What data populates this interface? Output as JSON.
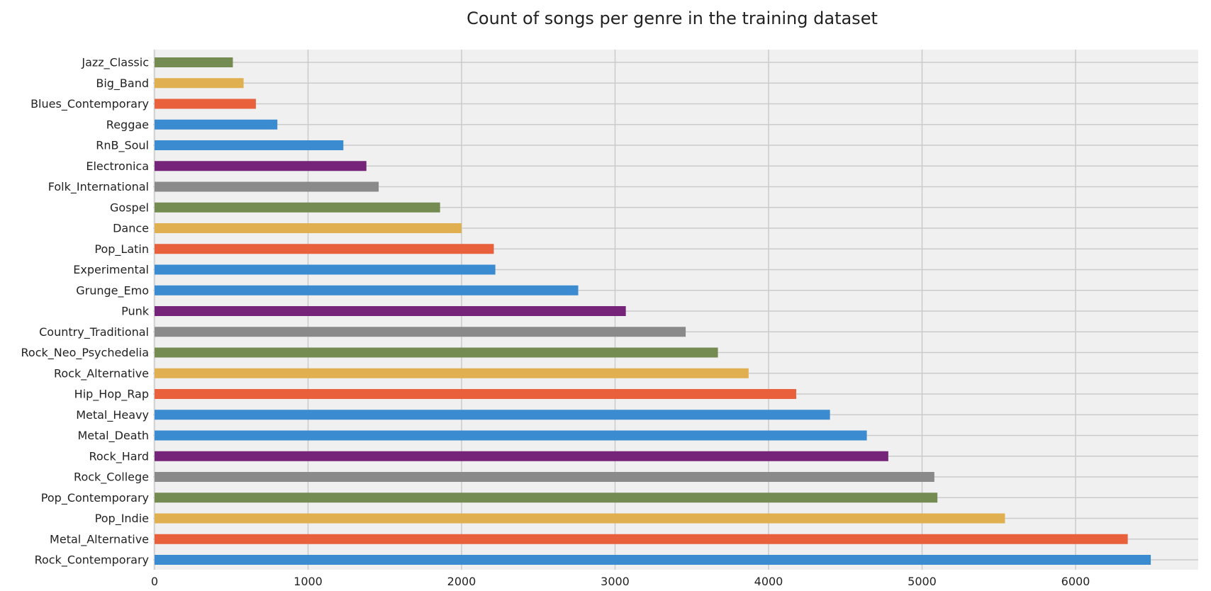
{
  "chart_data": {
    "type": "bar",
    "orientation": "horizontal",
    "title": "Count of songs per genre in the training dataset",
    "xlabel": "",
    "ylabel": "",
    "xlim": [
      0,
      6800
    ],
    "xticks": [
      0,
      1000,
      2000,
      3000,
      4000,
      5000,
      6000
    ],
    "grid": true,
    "legend": "none",
    "categories": [
      "Rock_Contemporary",
      "Metal_Alternative",
      "Pop_Indie",
      "Pop_Contemporary",
      "Rock_College",
      "Rock_Hard",
      "Metal_Death",
      "Metal_Heavy",
      "Hip_Hop_Rap",
      "Rock_Alternative",
      "Rock_Neo_Psychedelia",
      "Country_Traditional",
      "Punk",
      "Grunge_Emo",
      "Experimental",
      "Pop_Latin",
      "Dance",
      "Gospel",
      "Folk_International",
      "Electronica",
      "RnB_Soul",
      "Reggae",
      "Blues_Contemporary",
      "Big_Band",
      "Jazz_Classic"
    ],
    "values": [
      6490,
      6340,
      5540,
      5100,
      5080,
      4780,
      4640,
      4400,
      4180,
      3870,
      3670,
      3460,
      3070,
      2760,
      2220,
      2210,
      2000,
      1860,
      1460,
      1380,
      1230,
      800,
      660,
      580,
      510
    ],
    "colors": [
      "#3b8bd0",
      "#e8603c",
      "#e0b050",
      "#748c52",
      "#8a8a8a",
      "#752479",
      "#3b8bd0",
      "#3b8bd0",
      "#e8603c",
      "#e0b050",
      "#748c52",
      "#8a8a8a",
      "#752479",
      "#3b8bd0",
      "#3b8bd0",
      "#e8603c",
      "#e0b050",
      "#748c52",
      "#8a8a8a",
      "#752479",
      "#3b8bd0",
      "#3b8bd0",
      "#e8603c",
      "#e0b050",
      "#748c52"
    ],
    "plot_background": "#f0f0f0"
  }
}
